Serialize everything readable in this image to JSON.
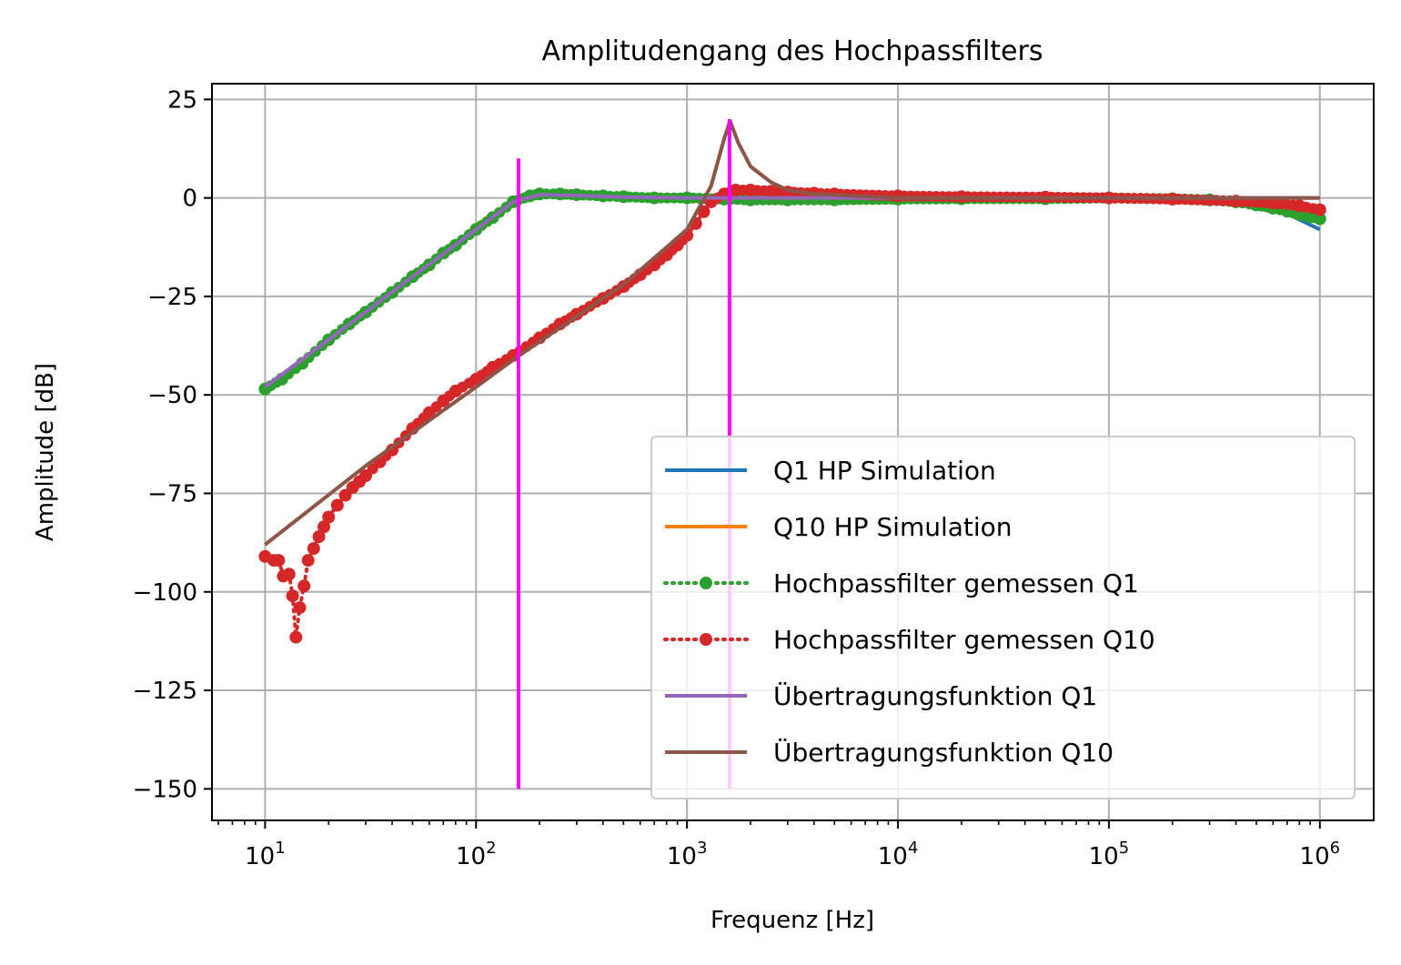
{
  "chart_data": {
    "type": "line",
    "title": "Amplitudengang des Hochpassfilters",
    "xlabel": "Frequenz [Hz]",
    "ylabel": "Amplitude [dB]",
    "xscale": "log",
    "xlim": [
      5.6,
      1800000
    ],
    "ylim": [
      -158,
      29
    ],
    "grid": true,
    "legend_position": "lower right",
    "x_ticks": [
      {
        "value": 10,
        "base": "10",
        "exp": "1"
      },
      {
        "value": 100,
        "base": "10",
        "exp": "2"
      },
      {
        "value": 1000,
        "base": "10",
        "exp": "3"
      },
      {
        "value": 10000,
        "base": "10",
        "exp": "4"
      },
      {
        "value": 100000,
        "base": "10",
        "exp": "5"
      },
      {
        "value": 1000000,
        "base": "10",
        "exp": "6"
      }
    ],
    "y_ticks": [
      {
        "value": 25,
        "label": "25"
      },
      {
        "value": 0,
        "label": "0"
      },
      {
        "value": -25,
        "label": "−25"
      },
      {
        "value": -50,
        "label": "−50"
      },
      {
        "value": -75,
        "label": "−75"
      },
      {
        "value": -100,
        "label": "−100"
      },
      {
        "value": -125,
        "label": "−125"
      },
      {
        "value": -150,
        "label": "−150"
      }
    ],
    "series": [
      {
        "name": "Q1 HP Simulation",
        "color": "#1f77b4",
        "style": "solid",
        "x": [
          10,
          20,
          50,
          100,
          150,
          200,
          300,
          500,
          1000,
          10000,
          100000,
          300000,
          500000,
          700000,
          1000000
        ],
        "y": [
          -48,
          -36,
          -20,
          -8,
          -1,
          0.8,
          0.5,
          0,
          0,
          0,
          0,
          -0.5,
          -1.5,
          -4,
          -8
        ]
      },
      {
        "name": "Q10 HP Simulation",
        "color": "#ff7f0e",
        "style": "solid",
        "x": [
          10,
          30,
          100,
          160,
          500,
          1000,
          1300,
          1500,
          1600,
          1750,
          2000,
          2500,
          3000,
          4000,
          10000,
          100000,
          1000000
        ],
        "y": [
          -88,
          -68,
          -48,
          -40,
          -22,
          -8,
          3,
          15,
          19.5,
          14,
          8,
          4,
          2,
          1,
          0,
          0,
          0
        ]
      },
      {
        "name": "Hochpassfilter gemessen Q1",
        "color": "#2ca02c",
        "style": "dotted-markers",
        "x": [
          10,
          12,
          15,
          20,
          25,
          30,
          40,
          50,
          60,
          70,
          80,
          100,
          120,
          150,
          180,
          200,
          250,
          300,
          400,
          500,
          700,
          1000,
          1500,
          2000,
          3000,
          5000,
          10000,
          20000,
          50000,
          100000,
          200000,
          300000,
          400000,
          500000,
          600000,
          700000,
          800000,
          900000,
          1000000
        ],
        "y": [
          -48.5,
          -46,
          -42,
          -36,
          -32,
          -29,
          -24,
          -20,
          -17,
          -14,
          -12,
          -8,
          -5,
          -1,
          0.5,
          1,
          1,
          0.8,
          0.5,
          0.3,
          0,
          0,
          -0.3,
          -0.5,
          -0.5,
          -0.5,
          -0.3,
          -0.2,
          -0.2,
          0,
          -0.2,
          -0.5,
          -1,
          -1.8,
          -2.6,
          -3.4,
          -4.2,
          -4.8,
          -5.3
        ]
      },
      {
        "name": "Hochpassfilter gemessen Q10",
        "color": "#d62728",
        "style": "dotted-markers",
        "x": [
          10,
          11,
          11.6,
          12.2,
          13,
          13.5,
          14,
          14.6,
          15.3,
          16,
          17,
          18,
          19,
          20,
          22,
          24,
          26,
          28,
          30,
          35,
          40,
          50,
          60,
          70,
          80,
          100,
          120,
          150,
          200,
          250,
          300,
          400,
          500,
          600,
          700,
          800,
          900,
          1000,
          1100,
          1200,
          1300,
          1500,
          1700,
          2000,
          2500,
          3000,
          4000,
          5000,
          10000,
          20000,
          50000,
          100000,
          200000,
          400000,
          600000,
          800000,
          1000000
        ],
        "y": [
          -91,
          -92,
          -92,
          -96,
          -95.5,
          -101,
          -111.5,
          -104,
          -98.5,
          -92,
          -89,
          -86,
          -83.5,
          -81,
          -78,
          -75.5,
          -73.5,
          -72,
          -70.5,
          -67,
          -64,
          -58.5,
          -54.5,
          -51.5,
          -49,
          -46,
          -43,
          -40,
          -35.5,
          -32,
          -29.5,
          -25.5,
          -22.5,
          -19.5,
          -17,
          -14.5,
          -12,
          -9.5,
          -6.5,
          -3.5,
          -1,
          1,
          2,
          2,
          1.7,
          1.5,
          1.2,
          1,
          0.5,
          0.3,
          0.2,
          0,
          -0.3,
          -0.8,
          -1.3,
          -2,
          -3
        ]
      },
      {
        "name": "Übertragungsfunktion Q1",
        "color": "#9467bd",
        "style": "solid",
        "x": [
          10,
          20,
          50,
          100,
          150,
          200,
          300,
          500,
          1000,
          3000,
          10000,
          100000,
          1000000
        ],
        "y": [
          -48,
          -36,
          -20,
          -8,
          -1,
          0.8,
          0.6,
          0.2,
          0,
          0,
          0,
          0,
          0
        ]
      },
      {
        "name": "Übertragungsfunktion Q10",
        "color": "#8c564b",
        "style": "solid",
        "x": [
          10,
          30,
          100,
          160,
          500,
          1000,
          1300,
          1500,
          1600,
          1750,
          2000,
          2500,
          3000,
          4000,
          10000,
          100000,
          1000000
        ],
        "y": [
          -88,
          -68,
          -48,
          -40,
          -22,
          -8,
          3,
          15,
          19.5,
          14,
          8,
          4,
          2,
          1,
          0,
          0,
          0
        ]
      }
    ],
    "vlines": [
      {
        "x": 159,
        "ymin": -150,
        "ymax": 10,
        "color": "#ff00ff"
      },
      {
        "x": 1590,
        "ymin": -150,
        "ymax": 20,
        "color": "#ff00ff"
      }
    ]
  }
}
